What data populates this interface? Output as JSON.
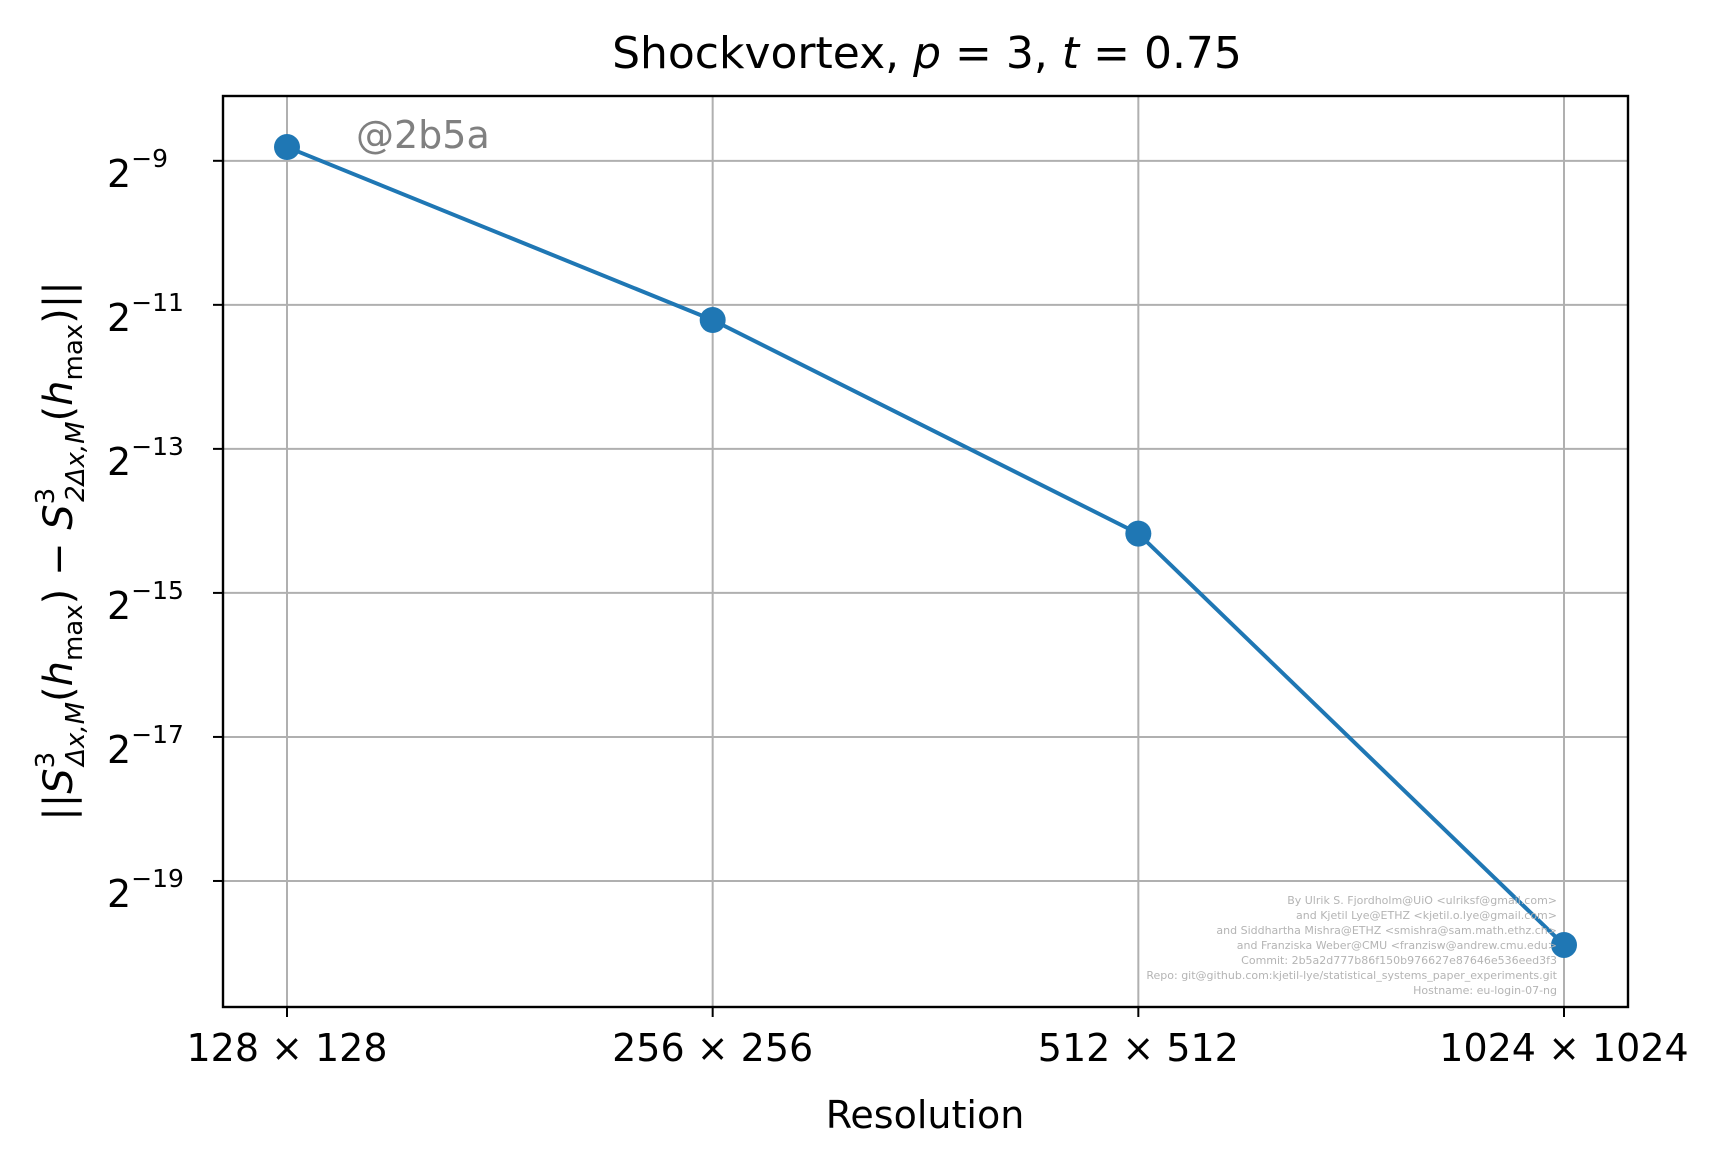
{
  "chart_data": {
    "type": "line",
    "title": "Shockvortex, p = 3, t = 0.75",
    "xlabel": "Resolution",
    "ylabel": "||S³Δx,M(hmax) − S³2Δx,M(hmax)||",
    "categories": [
      "128 × 128",
      "256 × 256",
      "512 × 512",
      "1024 × 1024"
    ],
    "y_scale": "log2",
    "y_exponents_range": [
      -20.75,
      -8.1
    ],
    "y_ticks": [
      {
        "exponent": -9,
        "base": "2",
        "label": "−9"
      },
      {
        "exponent": -11,
        "base": "2",
        "label": "−11"
      },
      {
        "exponent": -13,
        "base": "2",
        "label": "−13"
      },
      {
        "exponent": -15,
        "base": "2",
        "label": "−15"
      },
      {
        "exponent": -17,
        "base": "2",
        "label": "−17"
      },
      {
        "exponent": -19,
        "base": "2",
        "label": "−19"
      }
    ],
    "series": [
      {
        "color": "#1f77b4",
        "values": [
          0.00223,
          0.000422,
          5.4e-05,
          1.03e-06
        ]
      }
    ],
    "grid": true,
    "watermark": "@2b5a",
    "credits": [
      "By Ulrik S. Fjordholm@UiO <ulriksf@gmail.com>",
      "and Kjetil Lye@ETHZ <kjetil.o.lye@gmail.com>",
      "and Siddhartha Mishra@ETHZ <smishra@sam.math.ethz.ch>",
      "and Franziska Weber@CMU <franzisw@andrew.cmu.edu>",
      "Commit: 2b5a2d777b86f150b976627e87646e536eed3f3",
      "Repo: git@github.com:kjetil-lye/statistical_systems_paper_experiments.git",
      "Hostname: eu-login-07-ng"
    ]
  }
}
